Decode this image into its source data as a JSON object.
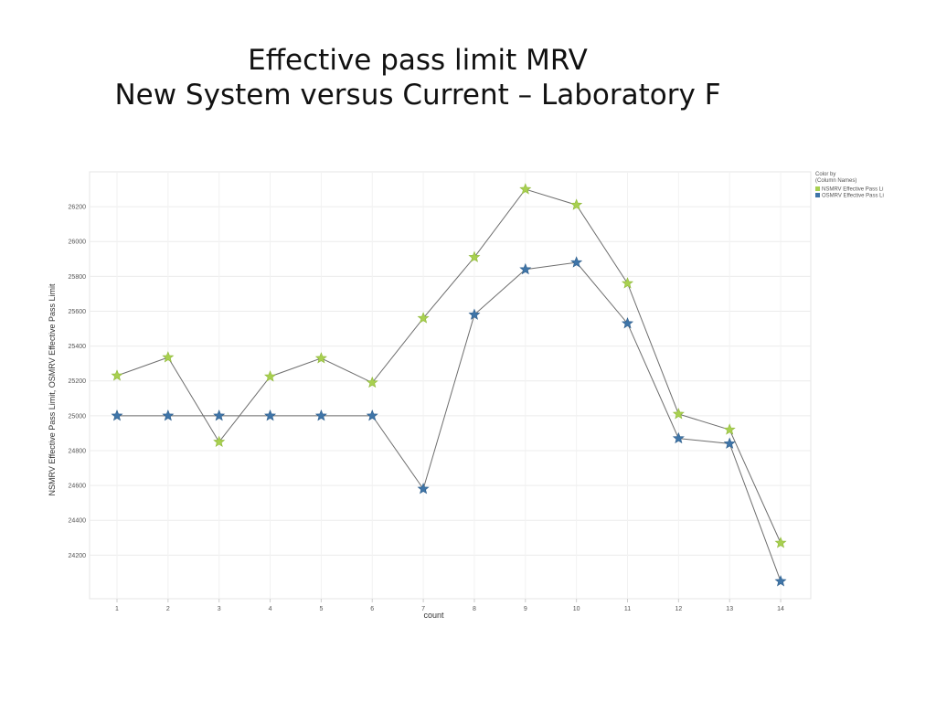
{
  "title_line1": "Effective pass limit MRV",
  "title_line2": "New System versus Current – Laboratory F",
  "chart_data": {
    "type": "line",
    "xlabel": "count",
    "ylabel": "NSMRV Effective Pass Limit, OSMRV Effective Pass Limit",
    "categories": [
      "1",
      "2",
      "3",
      "4",
      "5",
      "6",
      "7",
      "8",
      "9",
      "10",
      "11",
      "12",
      "13",
      "14"
    ],
    "yticks": [
      "24200",
      "24400",
      "24600",
      "24800",
      "25000",
      "25200",
      "25400",
      "25600",
      "25800",
      "26000",
      "26200"
    ],
    "ylim": [
      23950,
      26400
    ],
    "grid": true,
    "legend": {
      "title_line1": "Color by",
      "title_line2": "(Column Names)",
      "placement": "top-right"
    },
    "series": [
      {
        "name": "NSMRV Effective Pass Li",
        "color": "#a8d050",
        "marker": "star",
        "values": [
          25230,
          25335,
          24850,
          25225,
          25330,
          25190,
          25560,
          25910,
          26300,
          26210,
          25760,
          25010,
          24920,
          24270
        ]
      },
      {
        "name": "OSMRV Effective Pass Li",
        "color": "#3f75a8",
        "marker": "star",
        "values": [
          25000,
          25000,
          25000,
          25000,
          25000,
          25000,
          24580,
          25580,
          25840,
          25880,
          25530,
          24870,
          24840,
          24050
        ]
      }
    ],
    "line_color": "#6e6e6e"
  }
}
